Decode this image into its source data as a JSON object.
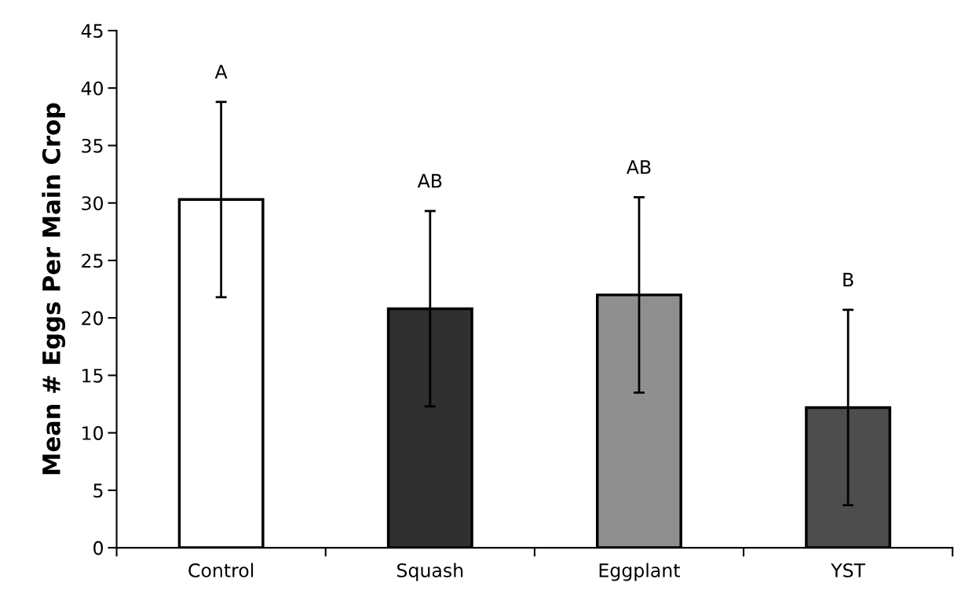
{
  "chart_data": {
    "type": "bar",
    "ylabel": "Mean # Eggs Per Main Crop",
    "categories": [
      "Control",
      "Squash",
      "Eggplant",
      "YST"
    ],
    "values": [
      30.3,
      20.8,
      22.0,
      12.2
    ],
    "errors": [
      8.5,
      8.5,
      8.5,
      8.5
    ],
    "colors": [
      "#ffffff",
      "#303030",
      "#8f8f8f",
      "#4d4d4d"
    ],
    "ylim": [
      0,
      45
    ],
    "yticks": [
      0,
      5,
      10,
      15,
      20,
      25,
      30,
      35,
      40,
      45
    ],
    "grid": false,
    "legend": false,
    "annotations": [
      "A",
      "AB",
      "AB",
      "B"
    ]
  }
}
